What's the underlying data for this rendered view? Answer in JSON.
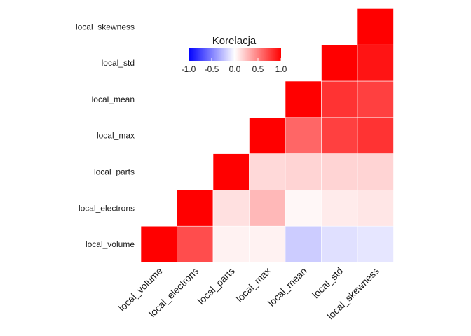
{
  "chart_data": {
    "type": "heatmap",
    "variables": [
      "local_volume",
      "local_electrons",
      "local_parts",
      "local_max",
      "local_mean",
      "local_std",
      "local_skewness"
    ],
    "layout": "upper-triangle",
    "cells": [
      {
        "x": "local_volume",
        "y": "local_volume",
        "value": 1.0
      },
      {
        "x": "local_electrons",
        "y": "local_volume",
        "value": 0.7
      },
      {
        "x": "local_parts",
        "y": "local_volume",
        "value": 0.05
      },
      {
        "x": "local_max",
        "y": "local_volume",
        "value": 0.05
      },
      {
        "x": "local_mean",
        "y": "local_volume",
        "value": -0.2
      },
      {
        "x": "local_std",
        "y": "local_volume",
        "value": -0.12
      },
      {
        "x": "local_skewness",
        "y": "local_volume",
        "value": -0.1
      },
      {
        "x": "local_electrons",
        "y": "local_electrons",
        "value": 1.0
      },
      {
        "x": "local_parts",
        "y": "local_electrons",
        "value": 0.12
      },
      {
        "x": "local_max",
        "y": "local_electrons",
        "value": 0.28
      },
      {
        "x": "local_mean",
        "y": "local_electrons",
        "value": 0.03
      },
      {
        "x": "local_std",
        "y": "local_electrons",
        "value": 0.08
      },
      {
        "x": "local_skewness",
        "y": "local_electrons",
        "value": 0.1
      },
      {
        "x": "local_parts",
        "y": "local_parts",
        "value": 1.0
      },
      {
        "x": "local_max",
        "y": "local_parts",
        "value": 0.15
      },
      {
        "x": "local_mean",
        "y": "local_parts",
        "value": 0.17
      },
      {
        "x": "local_std",
        "y": "local_parts",
        "value": 0.17
      },
      {
        "x": "local_skewness",
        "y": "local_parts",
        "value": 0.17
      },
      {
        "x": "local_max",
        "y": "local_max",
        "value": 1.0
      },
      {
        "x": "local_mean",
        "y": "local_max",
        "value": 0.6
      },
      {
        "x": "local_std",
        "y": "local_max",
        "value": 0.75
      },
      {
        "x": "local_skewness",
        "y": "local_max",
        "value": 0.8
      },
      {
        "x": "local_mean",
        "y": "local_mean",
        "value": 1.0
      },
      {
        "x": "local_std",
        "y": "local_mean",
        "value": 0.8
      },
      {
        "x": "local_skewness",
        "y": "local_mean",
        "value": 0.75
      },
      {
        "x": "local_std",
        "y": "local_std",
        "value": 1.0
      },
      {
        "x": "local_skewness",
        "y": "local_std",
        "value": 0.92
      },
      {
        "x": "local_skewness",
        "y": "local_skewness",
        "value": 1.0
      }
    ],
    "legend": {
      "title": "Korelacja",
      "ticks": [
        "-1.0",
        "-0.5",
        "0.0",
        "0.5",
        "1.0"
      ],
      "tick_values": [
        -1.0,
        -0.5,
        0.0,
        0.5,
        1.0
      ],
      "range": [
        -1,
        1
      ],
      "placement": "top-center"
    },
    "colors": {
      "low": "#0000ff",
      "mid": "#ffffff",
      "high": "#ff0000"
    },
    "grid": false
  }
}
